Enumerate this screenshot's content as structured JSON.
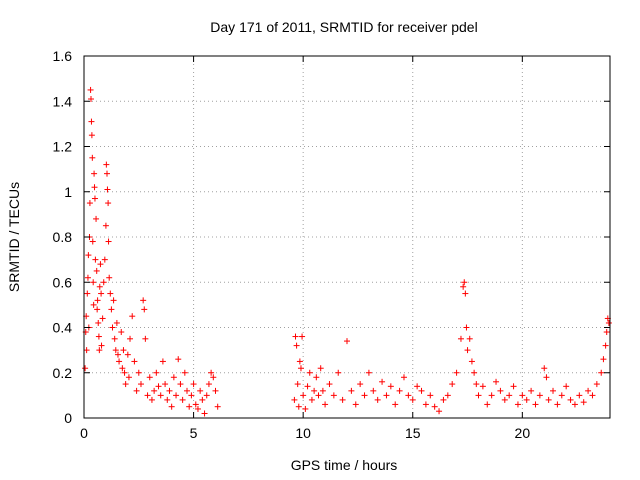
{
  "chart_data": {
    "type": "scatter",
    "title": "Day 171 of 2011, SRMTID for receiver pdel",
    "xlabel": "GPS time / hours",
    "ylabel": "SRMTID / TECUs",
    "xlim": [
      0,
      24
    ],
    "ylim": [
      0,
      1.6
    ],
    "x_ticks": [
      0,
      5,
      10,
      15,
      20
    ],
    "x_tick_labels": [
      "0",
      "5",
      "10",
      "15",
      "20"
    ],
    "y_ticks": [
      0,
      0.2,
      0.4,
      0.6,
      0.8,
      1.0,
      1.2,
      1.4,
      1.6
    ],
    "y_tick_labels": [
      "0",
      "0.2",
      "0.4",
      "0.6",
      "0.8",
      "1",
      "1.2",
      "1.4",
      "1.6"
    ],
    "grid": true,
    "marker": "plus",
    "color": "#ff0000",
    "series": [
      {
        "name": "pdel",
        "points": [
          [
            0.05,
            0.22
          ],
          [
            0.08,
            0.38
          ],
          [
            0.1,
            0.45
          ],
          [
            0.12,
            0.3
          ],
          [
            0.15,
            0.55
          ],
          [
            0.18,
            0.62
          ],
          [
            0.2,
            0.72
          ],
          [
            0.22,
            0.4
          ],
          [
            0.25,
            0.8
          ],
          [
            0.27,
            0.95
          ],
          [
            0.3,
            1.45
          ],
          [
            0.32,
            1.41
          ],
          [
            0.34,
            1.31
          ],
          [
            0.36,
            1.25
          ],
          [
            0.38,
            1.15
          ],
          [
            0.4,
            0.78
          ],
          [
            0.42,
            0.6
          ],
          [
            0.44,
            0.5
          ],
          [
            0.46,
            1.08
          ],
          [
            0.48,
            1.02
          ],
          [
            0.5,
            0.97
          ],
          [
            0.52,
            0.7
          ],
          [
            0.55,
            0.88
          ],
          [
            0.58,
            0.65
          ],
          [
            0.6,
            0.48
          ],
          [
            0.62,
            0.52
          ],
          [
            0.65,
            0.42
          ],
          [
            0.68,
            0.36
          ],
          [
            0.7,
            0.3
          ],
          [
            0.72,
            0.58
          ],
          [
            0.75,
            0.68
          ],
          [
            0.78,
            0.55
          ],
          [
            0.8,
            0.32
          ],
          [
            0.85,
            0.44
          ],
          [
            0.9,
            0.6
          ],
          [
            0.95,
            0.7
          ],
          [
            1.0,
            0.85
          ],
          [
            1.02,
            1.12
          ],
          [
            1.05,
            1.08
          ],
          [
            1.07,
            1.01
          ],
          [
            1.1,
            0.95
          ],
          [
            1.12,
            0.78
          ],
          [
            1.15,
            0.62
          ],
          [
            1.2,
            0.55
          ],
          [
            1.25,
            0.48
          ],
          [
            1.3,
            0.4
          ],
          [
            1.35,
            0.52
          ],
          [
            1.4,
            0.35
          ],
          [
            1.45,
            0.3
          ],
          [
            1.5,
            0.42
          ],
          [
            1.55,
            0.28
          ],
          [
            1.6,
            0.25
          ],
          [
            1.7,
            0.38
          ],
          [
            1.75,
            0.22
          ],
          [
            1.8,
            0.3
          ],
          [
            1.85,
            0.2
          ],
          [
            1.9,
            0.15
          ],
          [
            2.0,
            0.28
          ],
          [
            2.05,
            0.18
          ],
          [
            2.1,
            0.35
          ],
          [
            2.2,
            0.45
          ],
          [
            2.3,
            0.25
          ],
          [
            2.4,
            0.12
          ],
          [
            2.5,
            0.2
          ],
          [
            2.6,
            0.15
          ],
          [
            2.7,
            0.52
          ],
          [
            2.75,
            0.48
          ],
          [
            2.8,
            0.35
          ],
          [
            2.9,
            0.1
          ],
          [
            3.0,
            0.18
          ],
          [
            3.1,
            0.08
          ],
          [
            3.2,
            0.12
          ],
          [
            3.3,
            0.2
          ],
          [
            3.4,
            0.14
          ],
          [
            3.5,
            0.1
          ],
          [
            3.6,
            0.25
          ],
          [
            3.7,
            0.15
          ],
          [
            3.8,
            0.08
          ],
          [
            3.9,
            0.12
          ],
          [
            4.0,
            0.05
          ],
          [
            4.1,
            0.18
          ],
          [
            4.2,
            0.1
          ],
          [
            4.3,
            0.26
          ],
          [
            4.4,
            0.15
          ],
          [
            4.5,
            0.08
          ],
          [
            4.6,
            0.2
          ],
          [
            4.7,
            0.12
          ],
          [
            4.8,
            0.05
          ],
          [
            4.9,
            0.1
          ],
          [
            5.0,
            0.15
          ],
          [
            5.1,
            0.06
          ],
          [
            5.2,
            0.04
          ],
          [
            5.3,
            0.12
          ],
          [
            5.4,
            0.08
          ],
          [
            5.5,
            0.02
          ],
          [
            5.6,
            0.1
          ],
          [
            5.7,
            0.15
          ],
          [
            5.8,
            0.2
          ],
          [
            5.9,
            0.18
          ],
          [
            6.0,
            0.12
          ],
          [
            6.1,
            0.05
          ],
          [
            9.6,
            0.08
          ],
          [
            9.65,
            0.36
          ],
          [
            9.7,
            0.32
          ],
          [
            9.75,
            0.15
          ],
          [
            9.8,
            0.05
          ],
          [
            9.85,
            0.25
          ],
          [
            9.9,
            0.22
          ],
          [
            9.95,
            0.36
          ],
          [
            10.0,
            0.1
          ],
          [
            10.1,
            0.04
          ],
          [
            10.2,
            0.14
          ],
          [
            10.3,
            0.2
          ],
          [
            10.4,
            0.08
          ],
          [
            10.5,
            0.12
          ],
          [
            10.6,
            0.18
          ],
          [
            10.7,
            0.1
          ],
          [
            10.8,
            0.22
          ],
          [
            10.9,
            0.12
          ],
          [
            11.0,
            0.06
          ],
          [
            11.2,
            0.15
          ],
          [
            11.4,
            0.1
          ],
          [
            11.6,
            0.2
          ],
          [
            11.8,
            0.08
          ],
          [
            12.0,
            0.34
          ],
          [
            12.2,
            0.12
          ],
          [
            12.4,
            0.06
          ],
          [
            12.6,
            0.15
          ],
          [
            12.8,
            0.1
          ],
          [
            13.0,
            0.2
          ],
          [
            13.2,
            0.12
          ],
          [
            13.4,
            0.08
          ],
          [
            13.6,
            0.16
          ],
          [
            13.8,
            0.1
          ],
          [
            14.0,
            0.14
          ],
          [
            14.2,
            0.06
          ],
          [
            14.4,
            0.12
          ],
          [
            14.6,
            0.18
          ],
          [
            14.8,
            0.1
          ],
          [
            15.0,
            0.08
          ],
          [
            15.2,
            0.14
          ],
          [
            15.4,
            0.12
          ],
          [
            15.6,
            0.06
          ],
          [
            15.8,
            0.1
          ],
          [
            16.0,
            0.05
          ],
          [
            16.2,
            0.03
          ],
          [
            16.4,
            0.08
          ],
          [
            16.6,
            0.1
          ],
          [
            16.8,
            0.15
          ],
          [
            17.0,
            0.2
          ],
          [
            17.2,
            0.35
          ],
          [
            17.3,
            0.58
          ],
          [
            17.35,
            0.6
          ],
          [
            17.4,
            0.55
          ],
          [
            17.45,
            0.4
          ],
          [
            17.5,
            0.3
          ],
          [
            17.6,
            0.35
          ],
          [
            17.7,
            0.25
          ],
          [
            17.8,
            0.2
          ],
          [
            17.9,
            0.15
          ],
          [
            18.0,
            0.1
          ],
          [
            18.2,
            0.14
          ],
          [
            18.4,
            0.06
          ],
          [
            18.6,
            0.1
          ],
          [
            18.8,
            0.16
          ],
          [
            19.0,
            0.12
          ],
          [
            19.2,
            0.08
          ],
          [
            19.4,
            0.1
          ],
          [
            19.6,
            0.14
          ],
          [
            19.8,
            0.06
          ],
          [
            20.0,
            0.1
          ],
          [
            20.2,
            0.08
          ],
          [
            20.4,
            0.12
          ],
          [
            20.6,
            0.06
          ],
          [
            20.8,
            0.1
          ],
          [
            21.0,
            0.22
          ],
          [
            21.1,
            0.18
          ],
          [
            21.2,
            0.08
          ],
          [
            21.4,
            0.12
          ],
          [
            21.6,
            0.06
          ],
          [
            21.8,
            0.1
          ],
          [
            22.0,
            0.14
          ],
          [
            22.2,
            0.08
          ],
          [
            22.4,
            0.06
          ],
          [
            22.6,
            0.1
          ],
          [
            22.8,
            0.07
          ],
          [
            23.0,
            0.12
          ],
          [
            23.2,
            0.1
          ],
          [
            23.4,
            0.15
          ],
          [
            23.6,
            0.2
          ],
          [
            23.7,
            0.26
          ],
          [
            23.8,
            0.32
          ],
          [
            23.85,
            0.38
          ],
          [
            23.9,
            0.44
          ],
          [
            23.95,
            0.42
          ]
        ]
      }
    ]
  }
}
